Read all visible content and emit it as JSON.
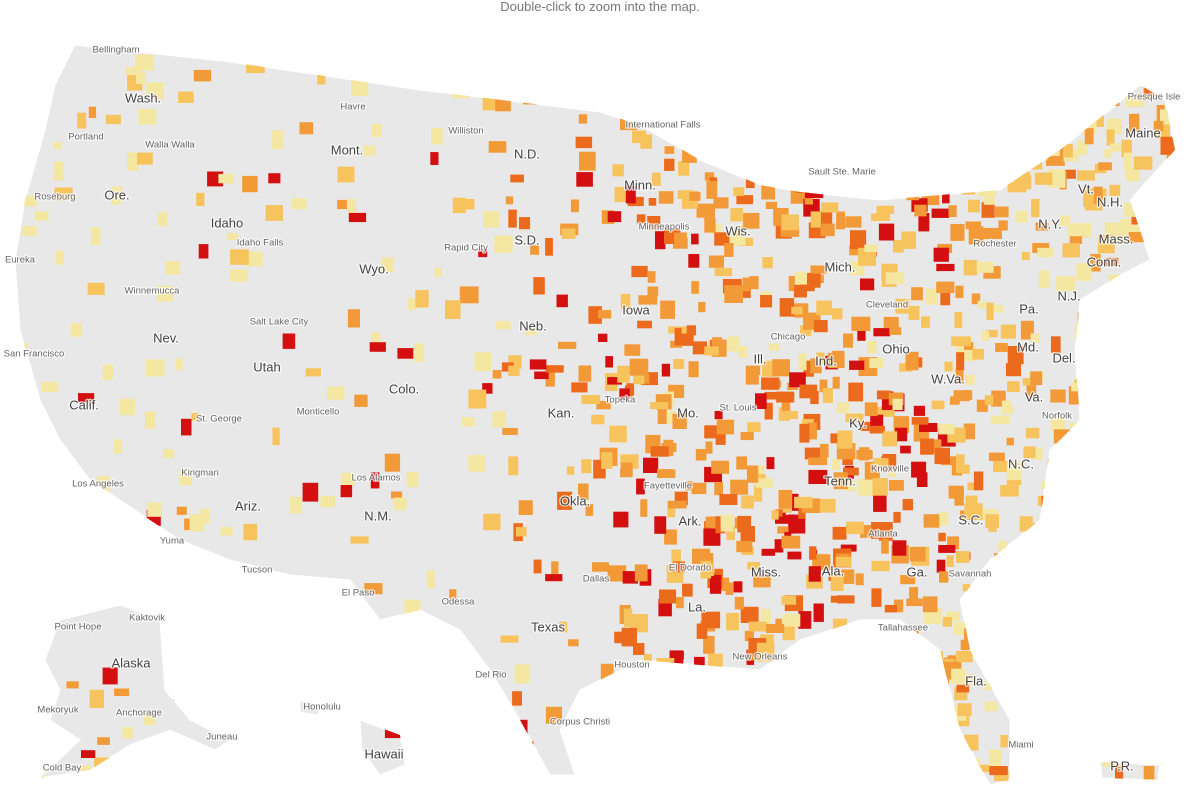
{
  "instruction": "Double-click to zoom into the map.",
  "state_labels": [
    "Wash.",
    "Ore.",
    "Calif.",
    "Idaho",
    "Nev.",
    "Mont.",
    "Wyo.",
    "Utah",
    "Ariz.",
    "Colo.",
    "N.M.",
    "N.D.",
    "S.D.",
    "Neb.",
    "Kan.",
    "Okla.",
    "Texas",
    "Minn.",
    "Iowa",
    "Mo.",
    "Ark.",
    "La.",
    "Wis.",
    "Ill.",
    "Mich.",
    "Ind.",
    "Ohio",
    "Ky.",
    "Tenn.",
    "Miss.",
    "Ala.",
    "Ga.",
    "Fla.",
    "S.C.",
    "N.C.",
    "Va.",
    "W.Va.",
    "Pa.",
    "N.Y.",
    "Md.",
    "Del.",
    "N.J.",
    "Conn.",
    "Mass.",
    "Vt.",
    "N.H.",
    "Maine",
    "Alaska",
    "Hawaii",
    "P.R."
  ],
  "city_labels": [
    "Bellingham",
    "Portland",
    "Walla Walla",
    "Roseburg",
    "Eureka",
    "Winnemucca",
    "San Francisco",
    "Los Angeles",
    "Kingman",
    "Yuma",
    "Tucson",
    "St. George",
    "Monticello",
    "Salt Lake City",
    "Idaho Falls",
    "Havre",
    "Williston",
    "International Falls",
    "Rapid City",
    "Topeka",
    "Los Alamos",
    "El Paso",
    "Odessa",
    "Dallas",
    "Houston",
    "Del Rio",
    "Corpus Christi",
    "Fayetteville",
    "El Dorado",
    "New Orleans",
    "Tallahassee",
    "Atlanta",
    "Savannah",
    "Knoxville",
    "Norfolk",
    "Cleveland",
    "Chicago",
    "St. Louis",
    "Minneapolis",
    "Sault Ste. Marie",
    "Rochester",
    "Presque Isle",
    "Miami",
    "Point Hope",
    "Kaktovik",
    "Anchorage",
    "Mekoryuk",
    "Juneau",
    "Cold Bay",
    "Honolulu"
  ]
}
